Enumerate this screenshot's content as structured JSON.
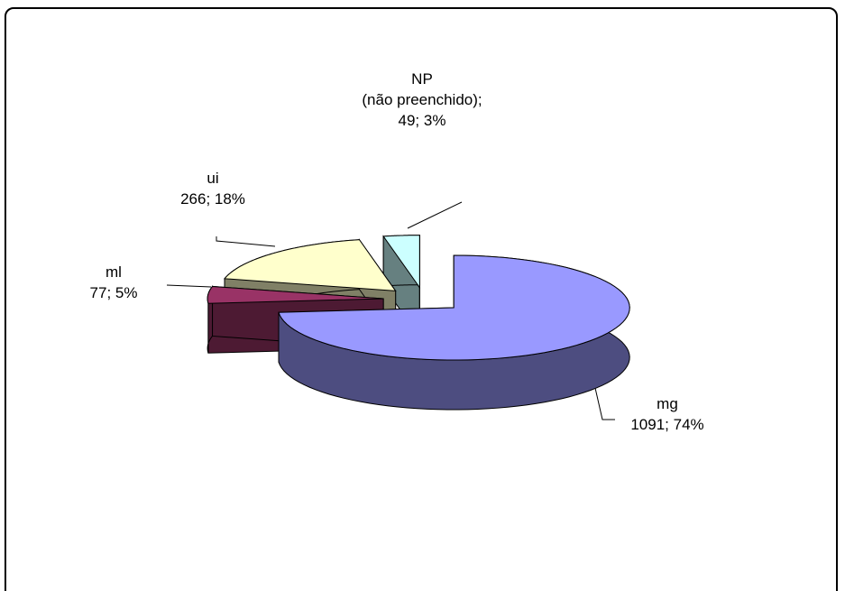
{
  "chart_data": {
    "type": "pie3d",
    "categories": [
      "mg",
      "ml",
      "ui",
      "NP\n(não preenchido);"
    ],
    "values": [
      1091,
      77,
      266,
      49
    ],
    "value_labels": [
      "1091; 74%",
      "77; 5%",
      "266; 18%",
      "49; 3%"
    ],
    "colors": [
      "#9999ff",
      "#993366",
      "#ffffcc",
      "#ccffff"
    ]
  }
}
